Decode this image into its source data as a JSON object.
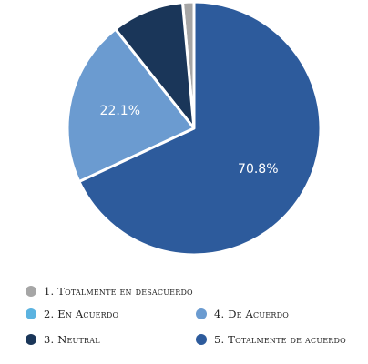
{
  "chart_data": {
    "type": "pie",
    "categories": [
      "1. Totalmente en desacuerdo",
      "2. En Acuerdo",
      "3. Neutral",
      "4. De Acuerdo",
      "5. Totalmente de acuerdo"
    ],
    "values": [
      1.5,
      0,
      9.6,
      22.1,
      70.8
    ],
    "data_labels": [
      "",
      "",
      "",
      "22.1%",
      "70.8%"
    ],
    "colors": [
      "#a6a6a6",
      "#5bb3e0",
      "#1a3659",
      "#6b9bd0",
      "#2d5b9c"
    ],
    "legend_placement": "bottom"
  }
}
